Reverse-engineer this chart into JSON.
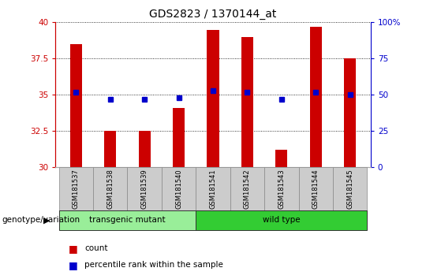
{
  "title": "GDS2823 / 1370144_at",
  "samples": [
    "GSM181537",
    "GSM181538",
    "GSM181539",
    "GSM181540",
    "GSM181541",
    "GSM181542",
    "GSM181543",
    "GSM181544",
    "GSM181545"
  ],
  "counts": [
    38.5,
    32.5,
    32.5,
    34.1,
    39.5,
    39.0,
    31.2,
    39.7,
    37.5
  ],
  "percentiles": [
    52,
    47,
    47,
    48,
    53,
    52,
    47,
    52,
    50
  ],
  "ylim_left": [
    30,
    40
  ],
  "ylim_right": [
    0,
    100
  ],
  "yticks_left": [
    30,
    32.5,
    35,
    37.5,
    40
  ],
  "yticks_right": [
    0,
    25,
    50,
    75,
    100
  ],
  "bar_color": "#cc0000",
  "dot_color": "#0000cc",
  "bar_width": 0.35,
  "groups": [
    {
      "label": "transgenic mutant",
      "indices": [
        0,
        1,
        2,
        3
      ],
      "color": "#99ee99"
    },
    {
      "label": "wild type",
      "indices": [
        4,
        5,
        6,
        7,
        8
      ],
      "color": "#33cc33"
    }
  ],
  "group_label": "genotype/variation",
  "legend_count_label": "count",
  "legend_percentile_label": "percentile rank within the sample",
  "grid_color": "#000000",
  "title_fontsize": 10,
  "tick_fontsize": 7.5,
  "bg_color": "#ffffff",
  "tick_color_left": "#cc0000",
  "tick_color_right": "#0000cc",
  "sample_label_color": "#000000",
  "sample_box_color": "#cccccc",
  "sample_box_edge": "#888888"
}
